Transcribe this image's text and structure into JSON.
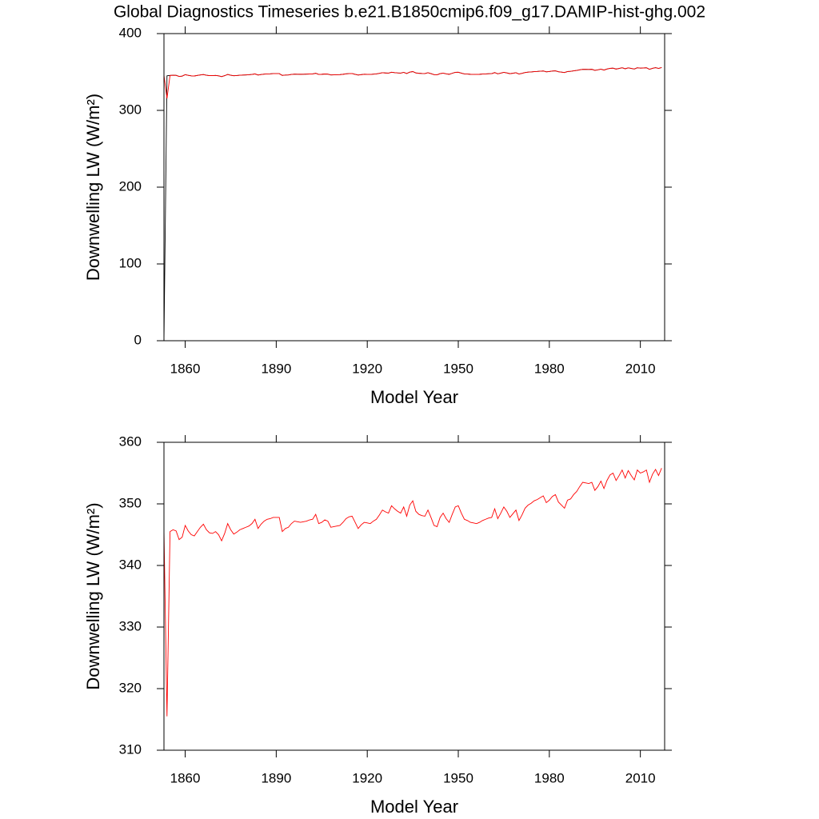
{
  "chart_data": [
    {
      "type": "line",
      "title": "Global Diagnostics Timeseries b.e21.B1850cmip6.f09_g17.DAMIP-hist-ghg.002",
      "xlabel": "Model Year",
      "ylabel": "Downwelling LW (W/m²)",
      "xlim": [
        1853,
        2018
      ],
      "xticks": [
        1860,
        1890,
        1920,
        1950,
        1980,
        2010
      ],
      "ylim": [
        0,
        400
      ],
      "yticks": [
        0,
        100,
        200,
        300,
        400
      ],
      "x": [
        1853,
        1854,
        1855,
        1856,
        1857,
        1858,
        1859,
        1860,
        1861,
        1862,
        1863,
        1864,
        1865,
        1866,
        1867,
        1868,
        1869,
        1870,
        1871,
        1872,
        1873,
        1874,
        1875,
        1876,
        1877,
        1878,
        1879,
        1880,
        1881,
        1882,
        1883,
        1884,
        1885,
        1886,
        1887,
        1888,
        1889,
        1890,
        1891,
        1892,
        1893,
        1894,
        1895,
        1896,
        1897,
        1898,
        1899,
        1900,
        1901,
        1902,
        1903,
        1904,
        1905,
        1906,
        1907,
        1908,
        1909,
        1910,
        1911,
        1912,
        1913,
        1914,
        1915,
        1916,
        1917,
        1918,
        1919,
        1920,
        1921,
        1922,
        1923,
        1924,
        1925,
        1926,
        1927,
        1928,
        1929,
        1930,
        1931,
        1932,
        1933,
        1934,
        1935,
        1936,
        1937,
        1938,
        1939,
        1940,
        1941,
        1942,
        1943,
        1944,
        1945,
        1946,
        1947,
        1948,
        1949,
        1950,
        1951,
        1952,
        1953,
        1954,
        1955,
        1956,
        1957,
        1958,
        1959,
        1960,
        1961,
        1962,
        1963,
        1964,
        1965,
        1966,
        1967,
        1968,
        1969,
        1970,
        1971,
        1972,
        1973,
        1974,
        1975,
        1976,
        1977,
        1978,
        1979,
        1980,
        1981,
        1982,
        1983,
        1984,
        1985,
        1986,
        1987,
        1988,
        1989,
        1990,
        1991,
        1992,
        1993,
        1994,
        1995,
        1996,
        1997,
        1998,
        1999,
        2000,
        2001,
        2002,
        2003,
        2004,
        2005,
        2006,
        2007,
        2008,
        2009,
        2010,
        2011,
        2012,
        2013,
        2014,
        2015,
        2016,
        2017
      ],
      "series": [
        {
          "color": "#000000",
          "values": [
            0,
            345,
            345.5,
            345.8,
            345.6,
            344.2,
            344.6,
            346.5,
            345.6,
            345.0,
            344.8,
            345.5,
            346.2,
            346.7,
            345.8,
            345.3,
            345.2,
            345.5,
            345.0,
            344.0,
            345.2,
            346.8,
            345.8,
            345.1,
            345.4,
            345.8,
            346.0,
            346.2,
            346.4,
            346.8,
            347.5,
            346.0,
            346.7,
            347.2,
            347.5,
            347.6,
            347.8,
            347.8,
            347.8,
            345.5,
            346.0,
            346.2,
            346.8,
            347.2,
            347.1,
            347.0,
            347.1,
            347.2,
            347.4,
            347.5,
            348.3,
            346.8,
            347.0,
            347.4,
            347.2,
            346.2,
            346.3,
            346.4,
            346.5,
            347.0,
            347.6,
            347.9,
            348.0,
            347.0,
            346.0,
            346.6,
            347.0,
            346.9,
            346.8,
            347.2,
            347.5,
            348.2,
            349.0,
            348.7,
            348.5,
            349.7,
            349.2,
            348.8,
            348.5,
            349.5,
            348.0,
            349.8,
            350.5,
            348.8,
            348.3,
            348.1,
            348.0,
            349.0,
            347.8,
            346.5,
            346.3,
            347.8,
            348.5,
            347.6,
            347.0,
            348.3,
            349.5,
            349.7,
            348.5,
            347.5,
            347.3,
            347.0,
            346.9,
            346.8,
            347.0,
            347.3,
            347.5,
            347.7,
            347.8,
            349.2,
            347.6,
            348.5,
            349.5,
            348.8,
            347.8,
            348.4,
            349.0,
            347.3,
            348.2,
            349.3,
            349.8,
            350.1,
            350.5,
            350.7,
            351.0,
            351.3,
            350.2,
            350.6,
            351.2,
            351.5,
            350.3,
            349.8,
            349.3,
            350.6,
            350.8,
            351.5,
            352.0,
            352.8,
            353.5,
            353.4,
            353.3,
            353.5,
            352.2,
            352.8,
            353.7,
            352.5,
            353.8,
            354.7,
            355.0,
            353.8,
            354.6,
            355.5,
            354.2,
            355.4,
            354.6,
            353.9,
            355.5,
            355.0,
            355.2,
            355.5,
            353.5,
            354.8,
            355.6,
            354.6,
            355.8
          ]
        },
        {
          "color": "#ff0000",
          "values": [
            345.8,
            315.5,
            345.5,
            345.8,
            345.6,
            344.2,
            344.6,
            346.5,
            345.6,
            345.0,
            344.8,
            345.5,
            346.2,
            346.7,
            345.8,
            345.3,
            345.2,
            345.5,
            345.0,
            344.0,
            345.2,
            346.8,
            345.8,
            345.1,
            345.4,
            345.8,
            346.0,
            346.2,
            346.4,
            346.8,
            347.5,
            346.0,
            346.7,
            347.2,
            347.5,
            347.6,
            347.8,
            347.8,
            347.8,
            345.5,
            346.0,
            346.2,
            346.8,
            347.2,
            347.1,
            347.0,
            347.1,
            347.2,
            347.4,
            347.5,
            348.3,
            346.8,
            347.0,
            347.4,
            347.2,
            346.2,
            346.3,
            346.4,
            346.5,
            347.0,
            347.6,
            347.9,
            348.0,
            347.0,
            346.0,
            346.6,
            347.0,
            346.9,
            346.8,
            347.2,
            347.5,
            348.2,
            349.0,
            348.7,
            348.5,
            349.7,
            349.2,
            348.8,
            348.5,
            349.5,
            348.0,
            349.8,
            350.5,
            348.8,
            348.3,
            348.1,
            348.0,
            349.0,
            347.8,
            346.5,
            346.3,
            347.8,
            348.5,
            347.6,
            347.0,
            348.3,
            349.5,
            349.7,
            348.5,
            347.5,
            347.3,
            347.0,
            346.9,
            346.8,
            347.0,
            347.3,
            347.5,
            347.7,
            347.8,
            349.2,
            347.6,
            348.5,
            349.5,
            348.8,
            347.8,
            348.4,
            349.0,
            347.3,
            348.2,
            349.3,
            349.8,
            350.1,
            350.5,
            350.7,
            351.0,
            351.3,
            350.2,
            350.6,
            351.2,
            351.5,
            350.3,
            349.8,
            349.3,
            350.6,
            350.8,
            351.5,
            352.0,
            352.8,
            353.5,
            353.4,
            353.3,
            353.5,
            352.2,
            352.8,
            353.7,
            352.5,
            353.8,
            354.7,
            355.0,
            353.8,
            354.6,
            355.5,
            354.2,
            355.4,
            354.6,
            353.9,
            355.5,
            355.0,
            355.2,
            355.5,
            353.5,
            354.8,
            355.6,
            354.6,
            355.8
          ]
        }
      ]
    },
    {
      "type": "line",
      "xlabel": "Model Year",
      "ylabel": "Downwelling LW (W/m²)",
      "xlim": [
        1853,
        2018
      ],
      "xticks": [
        1860,
        1890,
        1920,
        1950,
        1980,
        2010
      ],
      "ylim": [
        310,
        360
      ],
      "yticks": [
        310,
        320,
        330,
        340,
        350,
        360
      ],
      "x": [
        1853,
        1854,
        1855,
        1856,
        1857,
        1858,
        1859,
        1860,
        1861,
        1862,
        1863,
        1864,
        1865,
        1866,
        1867,
        1868,
        1869,
        1870,
        1871,
        1872,
        1873,
        1874,
        1875,
        1876,
        1877,
        1878,
        1879,
        1880,
        1881,
        1882,
        1883,
        1884,
        1885,
        1886,
        1887,
        1888,
        1889,
        1890,
        1891,
        1892,
        1893,
        1894,
        1895,
        1896,
        1897,
        1898,
        1899,
        1900,
        1901,
        1902,
        1903,
        1904,
        1905,
        1906,
        1907,
        1908,
        1909,
        1910,
        1911,
        1912,
        1913,
        1914,
        1915,
        1916,
        1917,
        1918,
        1919,
        1920,
        1921,
        1922,
        1923,
        1924,
        1925,
        1926,
        1927,
        1928,
        1929,
        1930,
        1931,
        1932,
        1933,
        1934,
        1935,
        1936,
        1937,
        1938,
        1939,
        1940,
        1941,
        1942,
        1943,
        1944,
        1945,
        1946,
        1947,
        1948,
        1949,
        1950,
        1951,
        1952,
        1953,
        1954,
        1955,
        1956,
        1957,
        1958,
        1959,
        1960,
        1961,
        1962,
        1963,
        1964,
        1965,
        1966,
        1967,
        1968,
        1969,
        1970,
        1971,
        1972,
        1973,
        1974,
        1975,
        1976,
        1977,
        1978,
        1979,
        1980,
        1981,
        1982,
        1983,
        1984,
        1985,
        1986,
        1987,
        1988,
        1989,
        1990,
        1991,
        1992,
        1993,
        1994,
        1995,
        1996,
        1997,
        1998,
        1999,
        2000,
        2001,
        2002,
        2003,
        2004,
        2005,
        2006,
        2007,
        2008,
        2009,
        2010,
        2011,
        2012,
        2013,
        2014,
        2015,
        2016,
        2017
      ],
      "series": [
        {
          "color": "#ff0000",
          "values": [
            345.8,
            315.5,
            345.5,
            345.8,
            345.6,
            344.2,
            344.6,
            346.5,
            345.6,
            345.0,
            344.8,
            345.5,
            346.2,
            346.7,
            345.8,
            345.3,
            345.2,
            345.5,
            345.0,
            344.0,
            345.2,
            346.8,
            345.8,
            345.1,
            345.4,
            345.8,
            346.0,
            346.2,
            346.4,
            346.8,
            347.5,
            346.0,
            346.7,
            347.2,
            347.5,
            347.6,
            347.8,
            347.8,
            347.8,
            345.5,
            346.0,
            346.2,
            346.8,
            347.2,
            347.1,
            347.0,
            347.1,
            347.2,
            347.4,
            347.5,
            348.3,
            346.8,
            347.0,
            347.4,
            347.2,
            346.2,
            346.3,
            346.4,
            346.5,
            347.0,
            347.6,
            347.9,
            348.0,
            347.0,
            346.0,
            346.6,
            347.0,
            346.9,
            346.8,
            347.2,
            347.5,
            348.2,
            349.0,
            348.7,
            348.5,
            349.7,
            349.2,
            348.8,
            348.5,
            349.5,
            348.0,
            349.8,
            350.5,
            348.8,
            348.3,
            348.1,
            348.0,
            349.0,
            347.8,
            346.5,
            346.3,
            347.8,
            348.5,
            347.6,
            347.0,
            348.3,
            349.5,
            349.7,
            348.5,
            347.5,
            347.3,
            347.0,
            346.9,
            346.8,
            347.0,
            347.3,
            347.5,
            347.7,
            347.8,
            349.2,
            347.6,
            348.5,
            349.5,
            348.8,
            347.8,
            348.4,
            349.0,
            347.3,
            348.2,
            349.3,
            349.8,
            350.1,
            350.5,
            350.7,
            351.0,
            351.3,
            350.2,
            350.6,
            351.2,
            351.5,
            350.3,
            349.8,
            349.3,
            350.6,
            350.8,
            351.5,
            352.0,
            352.8,
            353.5,
            353.4,
            353.3,
            353.5,
            352.2,
            352.8,
            353.7,
            352.5,
            353.8,
            354.7,
            355.0,
            353.8,
            354.6,
            355.5,
            354.2,
            355.4,
            354.6,
            353.9,
            355.5,
            355.0,
            355.2,
            355.5,
            353.5,
            354.8,
            355.6,
            354.6,
            355.8
          ]
        }
      ]
    }
  ]
}
